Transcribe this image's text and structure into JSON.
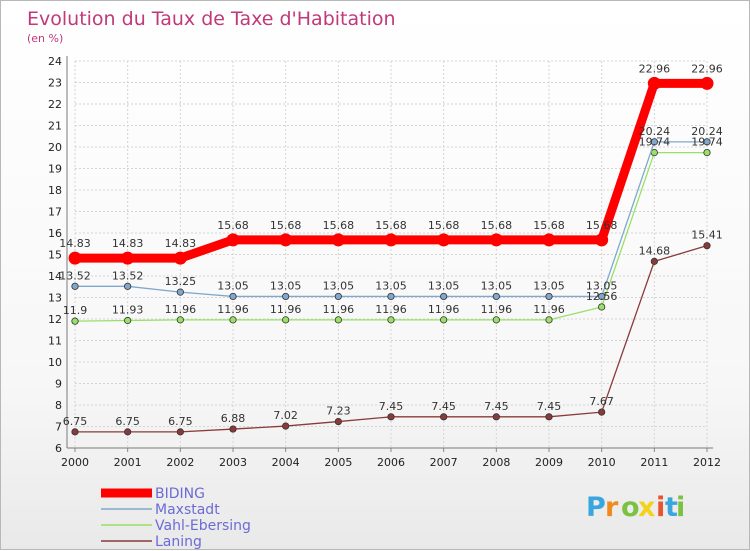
{
  "chart_data": {
    "type": "line",
    "title": "Evolution du Taux de Taxe d'Habitation",
    "subtitle": "(en %)",
    "x": [
      "2000",
      "2001",
      "2002",
      "2003",
      "2004",
      "2005",
      "2006",
      "2007",
      "2008",
      "2009",
      "2010",
      "2011",
      "2012"
    ],
    "ylim": [
      6,
      24
    ],
    "yticks": [
      6,
      7,
      8,
      9,
      10,
      11,
      12,
      13,
      14,
      15,
      16,
      17,
      18,
      19,
      20,
      21,
      22,
      23,
      24
    ],
    "grid": true,
    "legend_position": "bottom-left",
    "series": [
      {
        "name": "BIDING",
        "color": "#ff0000",
        "values": [
          14.83,
          14.83,
          14.83,
          15.68,
          15.68,
          15.68,
          15.68,
          15.68,
          15.68,
          15.68,
          15.68,
          22.96,
          22.96
        ],
        "labels": [
          "14.83",
          "14.83",
          "14.83",
          "15.68",
          "15.68",
          "15.68",
          "15.68",
          "15.68",
          "15.68",
          "15.68",
          "15.68",
          "22.96",
          "22.96"
        ]
      },
      {
        "name": "Maxstadt",
        "color": "#7fa8cc",
        "values": [
          13.52,
          13.52,
          13.25,
          13.05,
          13.05,
          13.05,
          13.05,
          13.05,
          13.05,
          13.05,
          13.05,
          20.24,
          20.24
        ],
        "labels": [
          "13.52",
          "13.52",
          "13.25",
          "13.05",
          "13.05",
          "13.05",
          "13.05",
          "13.05",
          "13.05",
          "13.05",
          "13.05",
          "20.24",
          "20.24"
        ]
      },
      {
        "name": "Vahl-Ebersing",
        "color": "#99e066",
        "values": [
          11.9,
          11.93,
          11.96,
          11.96,
          11.96,
          11.96,
          11.96,
          11.96,
          11.96,
          11.96,
          12.56,
          19.74,
          19.74
        ],
        "labels": [
          "11.9",
          "11.93",
          "11.96",
          "11.96",
          "11.96",
          "11.96",
          "11.96",
          "11.96",
          "11.96",
          "11.96",
          "12.56",
          "19.74",
          "19.74"
        ]
      },
      {
        "name": "Laning",
        "color": "#8b3a3a",
        "values": [
          6.75,
          6.75,
          6.75,
          6.88,
          7.02,
          7.23,
          7.45,
          7.45,
          7.45,
          7.45,
          7.67,
          14.68,
          15.41
        ],
        "labels": [
          "6.75",
          "6.75",
          "6.75",
          "6.88",
          "7.02",
          "7.23",
          "7.45",
          "7.45",
          "7.45",
          "7.45",
          "7.67",
          "14.68",
          "15.41"
        ]
      }
    ]
  },
  "logo": {
    "text": "Proxiti",
    "colors": [
      "#3aa6dd",
      "#f08a1c",
      "#7cc242",
      "#f4d21c",
      "#e8542f",
      "#3aa6dd",
      "#7cc242"
    ]
  }
}
